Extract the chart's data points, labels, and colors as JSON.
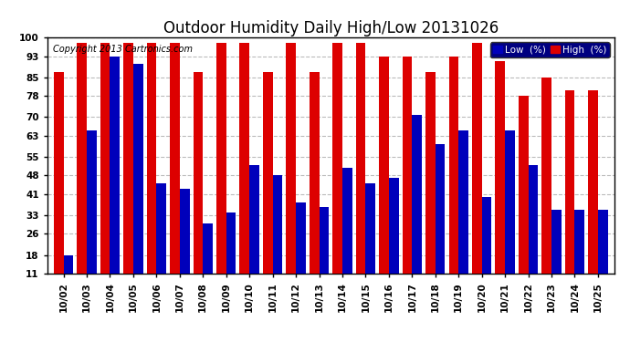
{
  "title": "Outdoor Humidity Daily High/Low 20131026",
  "copyright_text": "Copyright 2013 Cartronics.com",
  "dates": [
    "10/02",
    "10/03",
    "10/04",
    "10/05",
    "10/06",
    "10/07",
    "10/08",
    "10/09",
    "10/10",
    "10/11",
    "10/12",
    "10/13",
    "10/14",
    "10/15",
    "10/16",
    "10/17",
    "10/18",
    "10/19",
    "10/20",
    "10/21",
    "10/22",
    "10/23",
    "10/24",
    "10/25"
  ],
  "high_values": [
    87,
    98,
    98,
    98,
    98,
    98,
    87,
    98,
    98,
    87,
    98,
    87,
    98,
    98,
    93,
    93,
    87,
    93,
    98,
    91,
    78,
    85,
    80,
    80
  ],
  "low_values": [
    18,
    65,
    93,
    90,
    45,
    43,
    30,
    34,
    52,
    48,
    38,
    36,
    51,
    45,
    47,
    71,
    60,
    65,
    40,
    65,
    52,
    35,
    35,
    35
  ],
  "high_color": "#dd0000",
  "low_color": "#0000bb",
  "bg_color": "#ffffff",
  "plot_bg_color": "#ffffff",
  "grid_color": "#bbbbbb",
  "ylim": [
    11,
    100
  ],
  "yticks": [
    11,
    18,
    26,
    33,
    41,
    48,
    55,
    63,
    70,
    78,
    85,
    93,
    100
  ],
  "bar_width": 0.42,
  "legend_low_label": "Low  (%)",
  "legend_high_label": "High  (%)",
  "title_fontsize": 12,
  "copyright_fontsize": 7,
  "tick_fontsize": 7.5,
  "legend_fontsize": 7.5
}
